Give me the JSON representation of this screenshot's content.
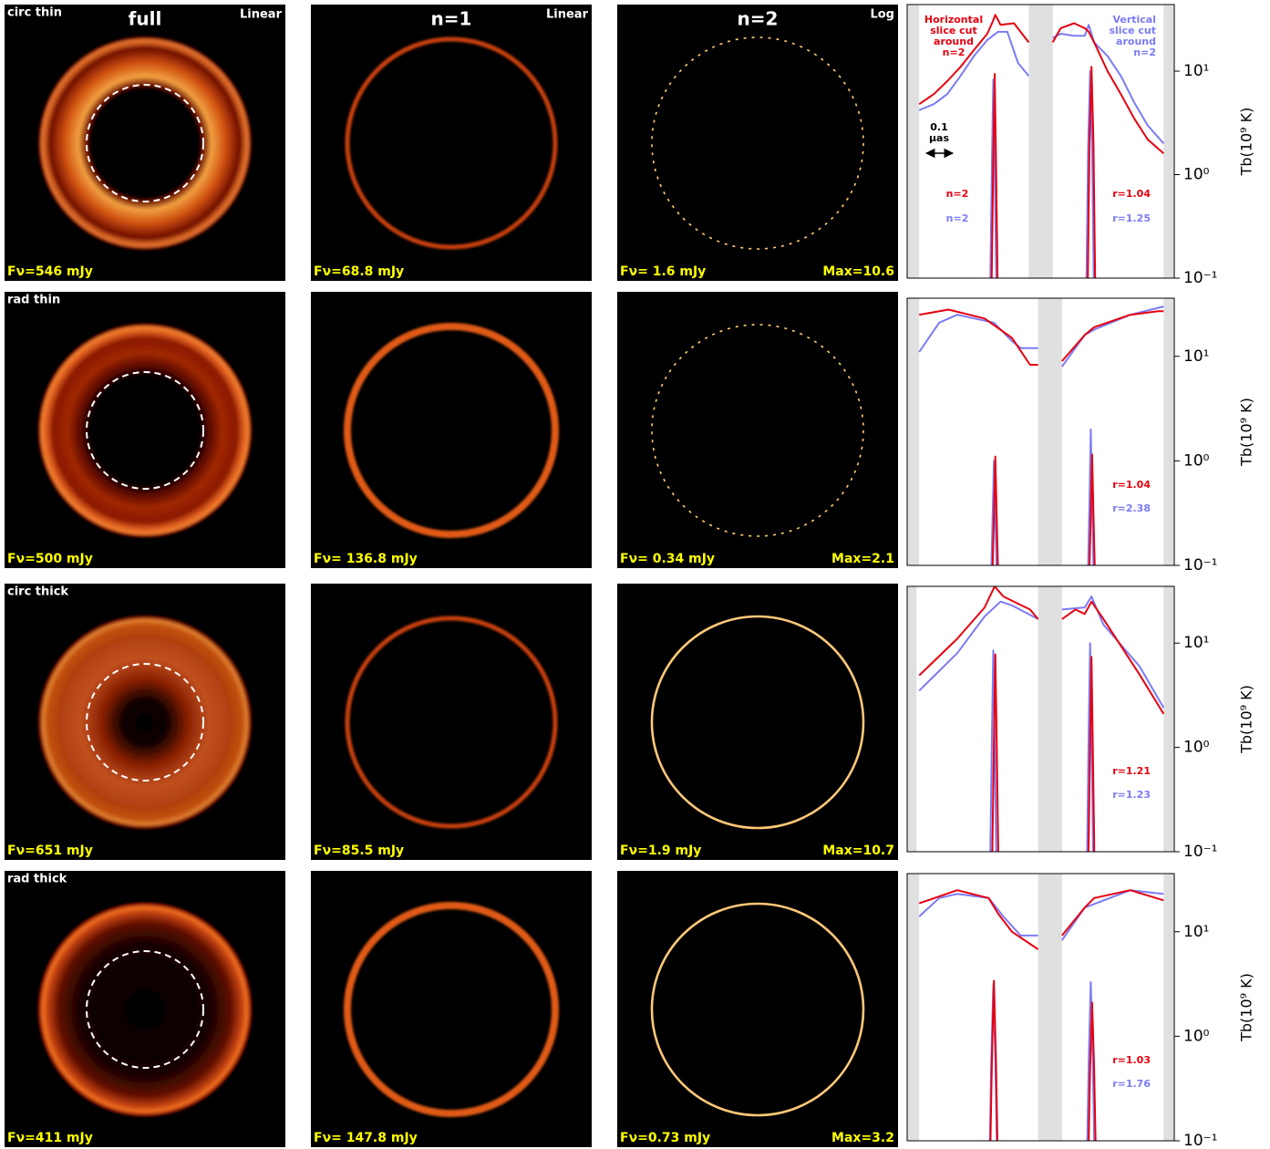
{
  "images": [
    {
      "label": "circ thin",
      "panels": [
        {
          "title": "full",
          "scale": "Linear",
          "flux": "Fν=546 mJy"
        },
        {
          "title": "n=1",
          "scale": "Linear",
          "flux": "Fν=68.8 mJy"
        },
        {
          "title": "n=2",
          "scale": "Log",
          "flux": "Fν= 1.6 mJy",
          "max": "Max=10.6"
        }
      ]
    },
    {
      "label": "rad thin",
      "panels": [
        {
          "flux": "Fν=500 mJy"
        },
        {
          "flux": "Fν= 136.8 mJy"
        },
        {
          "flux": "Fν= 0.34 mJy",
          "max": "Max=2.1"
        }
      ]
    },
    {
      "label": "circ thick",
      "panels": [
        {
          "flux": "Fν=651 mJy"
        },
        {
          "flux": "Fν=85.5 mJy"
        },
        {
          "flux": "Fν=1.9 mJy",
          "max": "Max=10.7"
        }
      ]
    },
    {
      "label": "rad thick",
      "panels": [
        {
          "flux": "Fν=411 mJy"
        },
        {
          "flux": "Fν= 147.8 mJy"
        },
        {
          "flux": "Fν=0.73 mJy",
          "max": "Max=3.2"
        }
      ]
    }
  ],
  "chart_data": [
    {
      "type": "line",
      "log_y": true,
      "ylabel": "Tb(10⁹ K)",
      "xlim": [
        0,
        20
      ],
      "ylim": [
        0.1,
        44
      ],
      "yticks": [
        {
          "value": 0.1,
          "label": "10⁻¹"
        },
        {
          "value": 1,
          "label": "10⁰"
        },
        {
          "value": 10,
          "label": "10¹"
        }
      ],
      "shaded": [
        [
          0,
          0.9
        ],
        [
          9.1,
          10.9
        ],
        [
          19.2,
          20
        ]
      ],
      "shade_color": "#e0e0e0",
      "series": [
        {
          "color": "#7b7bf5",
          "x": [
            0.9,
            2,
            3,
            4,
            5,
            6,
            6.8,
            7.5,
            8.3,
            9.1,
            null,
            10.9,
            11.5,
            12.5,
            13.3,
            13.6,
            14,
            15,
            16,
            17,
            18,
            19.2
          ],
          "values": [
            4.2,
            4.8,
            6,
            9,
            14,
            20,
            24,
            24,
            12,
            9,
            null,
            21,
            23,
            22,
            22,
            28,
            19,
            14,
            9,
            5,
            3,
            2
          ]
        },
        {
          "color": "#e6000f",
          "x": [
            0.9,
            2,
            3,
            4,
            5,
            6,
            6.4,
            6.6,
            7,
            8,
            9.1,
            null,
            10.9,
            11.5,
            12.5,
            13.3,
            13.6,
            14,
            15,
            16,
            17,
            18,
            19.2
          ],
          "values": [
            4.8,
            6,
            8,
            11,
            16,
            23,
            30,
            35,
            28,
            29,
            19,
            null,
            19,
            26,
            29,
            26,
            24,
            19,
            10,
            6,
            3.5,
            2.2,
            1.6
          ]
        },
        {
          "color": "#7b7bf5",
          "x": [
            6.2,
            6.35,
            6.45,
            6.55,
            6.7,
            null,
            13.4,
            13.55,
            13.7,
            13.85,
            14
          ],
          "values": [
            0.05,
            1.3,
            8.3,
            1.3,
            0.05,
            null,
            0.05,
            1.8,
            10,
            1.8,
            0.05
          ]
        },
        {
          "color": "#e6000f",
          "x": [
            6.3,
            6.45,
            6.55,
            6.65,
            6.8,
            null,
            13.5,
            13.65,
            13.8,
            13.95,
            14.1
          ],
          "values": [
            0.05,
            1.5,
            9.4,
            1.5,
            0.05,
            null,
            0.05,
            2,
            11,
            2,
            0.05
          ]
        }
      ],
      "annotations": [
        {
          "lines": [
            "Horizontal",
            "slice cut",
            "around",
            "n=2"
          ],
          "color": "#e6000f"
        },
        {
          "lines": [
            "Vertical",
            "slice cut",
            "around",
            "n=2"
          ],
          "color": "#7b7bf5"
        },
        {
          "lines": [
            "0.1",
            "μas"
          ],
          "color": "#000000"
        },
        {
          "lines": [
            "n=2"
          ],
          "color": "#e6000f"
        },
        {
          "lines": [
            "n=2"
          ],
          "color": "#7b7bf5"
        },
        {
          "lines": [
            "r=1.04"
          ],
          "color": "#e6000f"
        },
        {
          "lines": [
            "r=1.25"
          ],
          "color": "#7b7bf5"
        }
      ]
    },
    {
      "type": "line",
      "log_y": true,
      "ylabel": "Tb(10⁹ K)",
      "xlim": [
        0,
        20
      ],
      "ylim": [
        0.1,
        36
      ],
      "yticks": [
        {
          "value": 0.1,
          "label": "10⁻¹"
        },
        {
          "value": 1,
          "label": "10⁰"
        },
        {
          "value": 10,
          "label": "10¹"
        }
      ],
      "shaded": [
        [
          0,
          0.9
        ],
        [
          9.8,
          11.6
        ],
        [
          19.2,
          20
        ]
      ],
      "shade_color": "#e0e0e0",
      "series": [
        {
          "color": "#7b7bf5",
          "x": [
            0.9,
            2.4,
            3.75,
            6.5,
            7.85,
            8.5,
            9.8,
            null,
            11.6,
            13.3,
            14,
            16.7,
            19.2
          ],
          "values": [
            11,
            21,
            25,
            21,
            14,
            12,
            12,
            null,
            8,
            16,
            18,
            25,
            30
          ]
        },
        {
          "color": "#e6000f",
          "x": [
            0.9,
            3.1,
            5.8,
            7.85,
            9.2,
            9.8,
            null,
            11.6,
            13.3,
            14,
            16.7,
            18.8,
            19.2
          ],
          "values": [
            25,
            28,
            23,
            15,
            8.3,
            8.3,
            null,
            9,
            16,
            19,
            25,
            27,
            27
          ]
        },
        {
          "color": "#7b7bf5",
          "x": [
            6.25,
            6.4,
            6.5,
            6.6,
            6.75,
            null,
            13.5,
            13.65,
            13.75,
            13.85,
            14
          ],
          "values": [
            0.05,
            0.3,
            1.0,
            0.3,
            0.05,
            null,
            0.05,
            0.4,
            2,
            0.4,
            0.05
          ]
        },
        {
          "color": "#e6000f",
          "x": [
            6.35,
            6.5,
            6.6,
            6.7,
            6.85,
            null,
            13.6,
            13.75,
            13.85,
            13.95,
            14.1
          ],
          "values": [
            0.05,
            0.3,
            1.1,
            0.3,
            0.05,
            null,
            0.05,
            0.3,
            1.15,
            0.3,
            0.05
          ]
        }
      ],
      "annotations": [
        {
          "lines": [
            "r=1.04"
          ],
          "color": "#e6000f"
        },
        {
          "lines": [
            "r=2.38"
          ],
          "color": "#7b7bf5"
        }
      ]
    },
    {
      "type": "line",
      "log_y": true,
      "ylabel": "Tb(10⁹ K)",
      "xlim": [
        0,
        20
      ],
      "ylim": [
        0.1,
        35
      ],
      "yticks": [
        {
          "value": 0.1,
          "label": "10⁻¹"
        },
        {
          "value": 1,
          "label": "10⁰"
        },
        {
          "value": 10,
          "label": "10¹"
        }
      ],
      "shaded": [
        [
          0,
          0.7
        ],
        [
          9.8,
          11.6
        ],
        [
          19.2,
          20
        ]
      ],
      "shade_color": "#e0e0e0",
      "series": [
        {
          "color": "#7b7bf5",
          "x": [
            0.9,
            3.75,
            5.8,
            7.0,
            7.85,
            9.8,
            null,
            11.6,
            13.3,
            13.8,
            14.7,
            17.4,
            19.2
          ],
          "values": [
            3.5,
            8,
            18,
            25,
            23,
            17,
            null,
            21,
            22,
            28,
            15,
            6,
            2.4
          ]
        },
        {
          "color": "#e6000f",
          "x": [
            0.9,
            3.75,
            5.8,
            6.55,
            7.2,
            9.2,
            9.8,
            null,
            11.6,
            12.6,
            13.3,
            13.8,
            14.7,
            17.4,
            19.2
          ],
          "values": [
            4.9,
            11,
            22,
            35,
            28,
            21,
            17,
            null,
            17,
            21,
            19,
            25,
            17,
            5,
            2.1
          ]
        },
        {
          "color": "#7b7bf5",
          "x": [
            6.2,
            6.35,
            6.45,
            6.55,
            6.7,
            null,
            13.45,
            13.6,
            13.7,
            13.8,
            13.95
          ],
          "values": [
            0.05,
            1.3,
            8.5,
            1.3,
            0.05,
            null,
            0.05,
            1.6,
            10,
            1.6,
            0.05
          ]
        },
        {
          "color": "#e6000f",
          "x": [
            6.35,
            6.5,
            6.6,
            6.7,
            6.85,
            null,
            13.55,
            13.7,
            13.8,
            13.9,
            14.05
          ],
          "values": [
            0.05,
            1.2,
            7.8,
            1.2,
            0.05,
            null,
            0.05,
            1.1,
            7.4,
            1.1,
            0.05
          ]
        }
      ],
      "annotations": [
        {
          "lines": [
            "r=1.21"
          ],
          "color": "#e6000f"
        },
        {
          "lines": [
            "r=1.23"
          ],
          "color": "#7b7bf5"
        }
      ]
    },
    {
      "type": "line",
      "log_y": true,
      "ylabel": "Tb(10⁹ K)",
      "xlim": [
        0,
        20
      ],
      "ylim": [
        0.1,
        36
      ],
      "yticks": [
        {
          "value": 0.1,
          "label": "10⁻¹"
        },
        {
          "value": 1,
          "label": "10⁰"
        },
        {
          "value": 10,
          "label": "10¹"
        }
      ],
      "shaded": [
        [
          0,
          0.9
        ],
        [
          9.8,
          11.6
        ],
        [
          19.2,
          20
        ]
      ],
      "shade_color": "#e0e0e0",
      "series": [
        {
          "color": "#7b7bf5",
          "x": [
            0.9,
            2.4,
            3.75,
            6.1,
            7.2,
            8.5,
            9.8,
            null,
            11.6,
            13.3,
            16.7,
            19.2
          ],
          "values": [
            14,
            21,
            23,
            21,
            14,
            9.2,
            9.2,
            null,
            8.3,
            17,
            25,
            23
          ]
        },
        {
          "color": "#e6000f",
          "x": [
            0.9,
            3.75,
            6.1,
            6.8,
            7.85,
            9.8,
            null,
            11.6,
            13.3,
            14,
            16.7,
            19.2
          ],
          "values": [
            18.7,
            25,
            21,
            15,
            10,
            6.8,
            null,
            9.2,
            17,
            21,
            25,
            20
          ]
        },
        {
          "color": "#7b7bf5",
          "x": [
            6.15,
            6.3,
            6.45,
            6.6,
            6.75,
            null,
            13.45,
            13.6,
            13.75,
            13.9,
            14.05
          ],
          "values": [
            0.05,
            0.6,
            3.1,
            0.6,
            0.05,
            null,
            0.05,
            0.6,
            3.3,
            0.6,
            0.05
          ]
        },
        {
          "color": "#e6000f",
          "x": [
            6.2,
            6.35,
            6.5,
            6.65,
            6.8,
            null,
            13.55,
            13.7,
            13.85,
            14.0,
            14.15
          ],
          "values": [
            0.05,
            0.6,
            3.4,
            0.6,
            0.05,
            null,
            0.05,
            0.5,
            2.1,
            0.5,
            0.05
          ]
        }
      ],
      "annotations": [
        {
          "lines": [
            "r=1.03"
          ],
          "color": "#e6000f"
        },
        {
          "lines": [
            "r=1.76"
          ],
          "color": "#7b7bf5"
        }
      ]
    }
  ]
}
